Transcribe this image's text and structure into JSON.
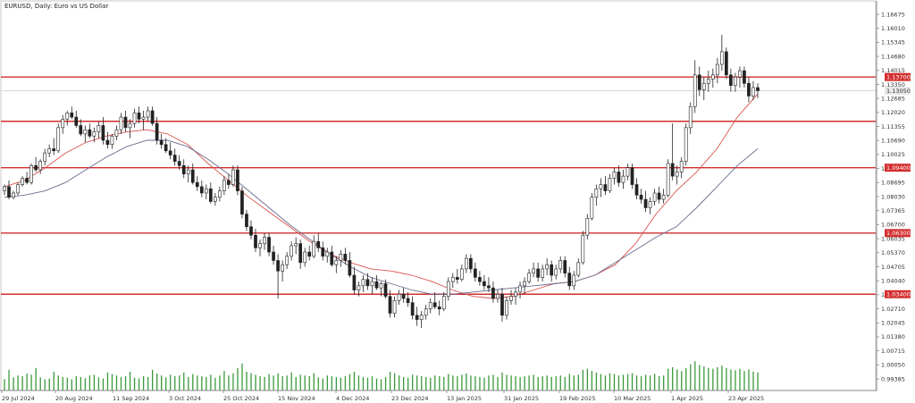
{
  "chart_data": {
    "type": "candlestick",
    "title": "EURUSD, Daily:  Euro vs US Dollar",
    "y_ticks": [
      "1.16675",
      "1.16010",
      "1.15345",
      "1.14680",
      "1.14015",
      "1.13350",
      "1.12685",
      "1.12020",
      "1.11355",
      "1.10690",
      "1.10025",
      "1.09360",
      "1.08695",
      "1.08030",
      "1.07365",
      "1.06700",
      "1.06035",
      "1.05370",
      "1.04705",
      "1.04040",
      "1.03375",
      "1.02710",
      "1.02045",
      "1.01380",
      "1.00715",
      "1.00050",
      "0.99385"
    ],
    "x_ticks": [
      "29 Jul 2024",
      "20 Aug 2024",
      "11 Sep 2024",
      "3 Oct 2024",
      "25 Oct 2024",
      "15 Nov 2024",
      "4 Dec 2024",
      "23 Dec 2024",
      "13 Jan 2025",
      "31 Jan 2025",
      "19 Feb 2025",
      "10 Mar 2025",
      "1 Apr 2025",
      "23 Apr 2025"
    ],
    "ylim": [
      0.99385,
      1.16675
    ],
    "horizontal_levels": [
      {
        "value": 1.137,
        "label": "1.13700"
      },
      {
        "value": 1.116,
        "label": ""
      },
      {
        "value": 1.094,
        "label": "1.09400"
      },
      {
        "value": 1.063,
        "label": "1.06300"
      },
      {
        "value": 1.034,
        "label": "1.03400"
      }
    ],
    "current_price": {
      "value": 1.1305,
      "label": "1.13050"
    },
    "grid": false,
    "series": [
      {
        "kind": "ma-fast",
        "color": "#d9534f",
        "values": [
          1.085,
          1.088,
          1.094,
          1.101,
          1.106,
          1.109,
          1.111,
          1.112,
          1.11,
          1.105,
          1.096,
          1.088,
          1.08,
          1.073,
          1.066,
          1.059,
          1.053,
          1.049,
          1.046,
          1.045,
          1.043,
          1.04,
          1.036,
          1.033,
          1.032,
          1.033,
          1.036,
          1.039,
          1.04,
          1.043,
          1.048,
          1.058,
          1.072,
          1.083,
          1.092,
          1.103,
          1.118,
          1.129
        ]
      },
      {
        "kind": "ma-slow",
        "color": "#6b6b8e",
        "values": [
          1.08,
          1.081,
          1.083,
          1.087,
          1.093,
          1.099,
          1.104,
          1.107,
          1.107,
          1.104,
          1.098,
          1.091,
          1.083,
          1.075,
          1.067,
          1.06,
          1.053,
          1.047,
          1.042,
          1.039,
          1.036,
          1.034,
          1.034,
          1.035,
          1.036,
          1.037,
          1.038,
          1.039,
          1.04,
          1.043,
          1.049,
          1.055,
          1.061,
          1.066,
          1.075,
          1.085,
          1.095,
          1.103
        ]
      }
    ],
    "candles": [
      [
        1.083,
        1.086,
        1.081,
        1.085
      ],
      [
        1.085,
        1.088,
        1.079,
        1.08
      ],
      [
        1.08,
        1.083,
        1.079,
        1.082
      ],
      [
        1.082,
        1.087,
        1.081,
        1.086
      ],
      [
        1.086,
        1.09,
        1.085,
        1.089
      ],
      [
        1.089,
        1.092,
        1.086,
        1.087
      ],
      [
        1.087,
        1.096,
        1.086,
        1.095
      ],
      [
        1.095,
        1.099,
        1.092,
        1.093
      ],
      [
        1.093,
        1.098,
        1.091,
        1.097
      ],
      [
        1.097,
        1.103,
        1.095,
        1.101
      ],
      [
        1.101,
        1.105,
        1.099,
        1.103
      ],
      [
        1.103,
        1.108,
        1.1,
        1.102
      ],
      [
        1.102,
        1.115,
        1.101,
        1.113
      ],
      [
        1.113,
        1.119,
        1.11,
        1.117
      ],
      [
        1.117,
        1.121,
        1.114,
        1.12
      ],
      [
        1.12,
        1.123,
        1.117,
        1.118
      ],
      [
        1.118,
        1.121,
        1.113,
        1.114
      ],
      [
        1.114,
        1.117,
        1.109,
        1.11
      ],
      [
        1.11,
        1.114,
        1.106,
        1.112
      ],
      [
        1.112,
        1.115,
        1.108,
        1.109
      ],
      [
        1.109,
        1.113,
        1.106,
        1.111
      ],
      [
        1.111,
        1.116,
        1.108,
        1.114
      ],
      [
        1.114,
        1.118,
        1.105,
        1.107
      ],
      [
        1.107,
        1.111,
        1.103,
        1.105
      ],
      [
        1.105,
        1.11,
        1.103,
        1.109
      ],
      [
        1.109,
        1.114,
        1.107,
        1.112
      ],
      [
        1.112,
        1.12,
        1.11,
        1.118
      ],
      [
        1.118,
        1.121,
        1.111,
        1.113
      ],
      [
        1.113,
        1.117,
        1.108,
        1.115
      ],
      [
        1.115,
        1.122,
        1.113,
        1.12
      ],
      [
        1.12,
        1.123,
        1.115,
        1.117
      ],
      [
        1.117,
        1.121,
        1.112,
        1.118
      ],
      [
        1.118,
        1.123,
        1.116,
        1.121
      ],
      [
        1.121,
        1.123,
        1.114,
        1.115
      ],
      [
        1.115,
        1.118,
        1.105,
        1.107
      ],
      [
        1.107,
        1.11,
        1.103,
        1.105
      ],
      [
        1.105,
        1.108,
        1.101,
        1.102
      ],
      [
        1.102,
        1.106,
        1.098,
        1.1
      ],
      [
        1.1,
        1.103,
        1.095,
        1.097
      ],
      [
        1.097,
        1.1,
        1.093,
        1.095
      ],
      [
        1.095,
        1.098,
        1.089,
        1.091
      ],
      [
        1.091,
        1.095,
        1.087,
        1.093
      ],
      [
        1.093,
        1.096,
        1.086,
        1.087
      ],
      [
        1.087,
        1.09,
        1.083,
        1.085
      ],
      [
        1.085,
        1.088,
        1.08,
        1.082
      ],
      [
        1.082,
        1.086,
        1.079,
        1.084
      ],
      [
        1.084,
        1.087,
        1.077,
        1.078
      ],
      [
        1.078,
        1.082,
        1.076,
        1.08
      ],
      [
        1.08,
        1.085,
        1.078,
        1.083
      ],
      [
        1.083,
        1.09,
        1.081,
        1.088
      ],
      [
        1.088,
        1.091,
        1.084,
        1.086
      ],
      [
        1.086,
        1.095,
        1.085,
        1.093
      ],
      [
        1.093,
        1.095,
        1.081,
        1.083
      ],
      [
        1.083,
        1.085,
        1.07,
        1.072
      ],
      [
        1.072,
        1.074,
        1.064,
        1.066
      ],
      [
        1.066,
        1.069,
        1.06,
        1.062
      ],
      [
        1.062,
        1.065,
        1.054,
        1.056
      ],
      [
        1.056,
        1.06,
        1.052,
        1.058
      ],
      [
        1.058,
        1.063,
        1.055,
        1.061
      ],
      [
        1.061,
        1.063,
        1.052,
        1.054
      ],
      [
        1.054,
        1.057,
        1.048,
        1.05
      ],
      [
        1.05,
        1.053,
        1.032,
        1.045
      ],
      [
        1.045,
        1.05,
        1.04,
        1.048
      ],
      [
        1.048,
        1.054,
        1.046,
        1.052
      ],
      [
        1.052,
        1.059,
        1.05,
        1.057
      ],
      [
        1.057,
        1.061,
        1.053,
        1.058
      ],
      [
        1.058,
        1.06,
        1.046,
        1.049
      ],
      [
        1.049,
        1.056,
        1.047,
        1.054
      ],
      [
        1.054,
        1.057,
        1.05,
        1.052
      ],
      [
        1.052,
        1.062,
        1.051,
        1.059
      ],
      [
        1.059,
        1.063,
        1.054,
        1.056
      ],
      [
        1.056,
        1.059,
        1.05,
        1.052
      ],
      [
        1.052,
        1.056,
        1.049,
        1.054
      ],
      [
        1.054,
        1.057,
        1.047,
        1.048
      ],
      [
        1.048,
        1.052,
        1.044,
        1.05
      ],
      [
        1.05,
        1.055,
        1.047,
        1.053
      ],
      [
        1.053,
        1.056,
        1.048,
        1.05
      ],
      [
        1.05,
        1.054,
        1.042,
        1.043
      ],
      [
        1.043,
        1.047,
        1.034,
        1.036
      ],
      [
        1.036,
        1.04,
        1.033,
        1.038
      ],
      [
        1.038,
        1.043,
        1.035,
        1.041
      ],
      [
        1.041,
        1.044,
        1.036,
        1.038
      ],
      [
        1.038,
        1.042,
        1.034,
        1.04
      ],
      [
        1.04,
        1.043,
        1.036,
        1.037
      ],
      [
        1.037,
        1.04,
        1.033,
        1.039
      ],
      [
        1.039,
        1.041,
        1.032,
        1.033
      ],
      [
        1.033,
        1.036,
        1.023,
        1.025
      ],
      [
        1.025,
        1.033,
        1.023,
        1.031
      ],
      [
        1.031,
        1.036,
        1.029,
        1.034
      ],
      [
        1.034,
        1.037,
        1.03,
        1.032
      ],
      [
        1.032,
        1.035,
        1.028,
        1.03
      ],
      [
        1.03,
        1.033,
        1.022,
        1.024
      ],
      [
        1.024,
        1.028,
        1.019,
        1.022
      ],
      [
        1.022,
        1.026,
        1.018,
        1.024
      ],
      [
        1.024,
        1.029,
        1.022,
        1.027
      ],
      [
        1.027,
        1.032,
        1.025,
        1.03
      ],
      [
        1.03,
        1.035,
        1.027,
        1.028
      ],
      [
        1.028,
        1.031,
        1.024,
        1.027
      ],
      [
        1.027,
        1.035,
        1.026,
        1.033
      ],
      [
        1.033,
        1.042,
        1.031,
        1.04
      ],
      [
        1.04,
        1.044,
        1.037,
        1.042
      ],
      [
        1.042,
        1.046,
        1.039,
        1.041
      ],
      [
        1.041,
        1.048,
        1.04,
        1.046
      ],
      [
        1.046,
        1.053,
        1.044,
        1.051
      ],
      [
        1.051,
        1.053,
        1.044,
        1.046
      ],
      [
        1.046,
        1.049,
        1.04,
        1.042
      ],
      [
        1.042,
        1.045,
        1.038,
        1.04
      ],
      [
        1.04,
        1.043,
        1.036,
        1.038
      ],
      [
        1.038,
        1.042,
        1.035,
        1.037
      ],
      [
        1.037,
        1.04,
        1.03,
        1.032
      ],
      [
        1.032,
        1.036,
        1.03,
        1.034
      ],
      [
        1.034,
        1.037,
        1.021,
        1.024
      ],
      [
        1.024,
        1.033,
        1.022,
        1.031
      ],
      [
        1.031,
        1.036,
        1.029,
        1.033
      ],
      [
        1.033,
        1.037,
        1.029,
        1.035
      ],
      [
        1.035,
        1.04,
        1.032,
        1.038
      ],
      [
        1.038,
        1.042,
        1.034,
        1.04
      ],
      [
        1.04,
        1.046,
        1.039,
        1.044
      ],
      [
        1.044,
        1.049,
        1.042,
        1.046
      ],
      [
        1.046,
        1.049,
        1.04,
        1.042
      ],
      [
        1.042,
        1.048,
        1.04,
        1.046
      ],
      [
        1.046,
        1.051,
        1.043,
        1.048
      ],
      [
        1.048,
        1.05,
        1.04,
        1.043
      ],
      [
        1.043,
        1.048,
        1.041,
        1.046
      ],
      [
        1.046,
        1.052,
        1.044,
        1.05
      ],
      [
        1.05,
        1.052,
        1.042,
        1.044
      ],
      [
        1.044,
        1.047,
        1.036,
        1.038
      ],
      [
        1.038,
        1.045,
        1.036,
        1.043
      ],
      [
        1.043,
        1.051,
        1.042,
        1.049
      ],
      [
        1.049,
        1.064,
        1.048,
        1.062
      ],
      [
        1.062,
        1.072,
        1.06,
        1.07
      ],
      [
        1.07,
        1.082,
        1.069,
        1.08
      ],
      [
        1.08,
        1.086,
        1.076,
        1.084
      ],
      [
        1.084,
        1.089,
        1.08,
        1.086
      ],
      [
        1.086,
        1.09,
        1.081,
        1.083
      ],
      [
        1.083,
        1.091,
        1.082,
        1.089
      ],
      [
        1.089,
        1.094,
        1.086,
        1.092
      ],
      [
        1.092,
        1.095,
        1.085,
        1.087
      ],
      [
        1.087,
        1.093,
        1.084,
        1.09
      ],
      [
        1.09,
        1.096,
        1.088,
        1.094
      ],
      [
        1.094,
        1.096,
        1.084,
        1.086
      ],
      [
        1.086,
        1.089,
        1.079,
        1.081
      ],
      [
        1.081,
        1.084,
        1.077,
        1.079
      ],
      [
        1.079,
        1.083,
        1.073,
        1.075
      ],
      [
        1.075,
        1.08,
        1.072,
        1.078
      ],
      [
        1.078,
        1.084,
        1.076,
        1.082
      ],
      [
        1.082,
        1.085,
        1.077,
        1.079
      ],
      [
        1.079,
        1.084,
        1.077,
        1.081
      ],
      [
        1.081,
        1.098,
        1.08,
        1.096
      ],
      [
        1.096,
        1.115,
        1.088,
        1.09
      ],
      [
        1.09,
        1.095,
        1.086,
        1.092
      ],
      [
        1.092,
        1.099,
        1.089,
        1.097
      ],
      [
        1.097,
        1.115,
        1.095,
        1.113
      ],
      [
        1.113,
        1.125,
        1.11,
        1.123
      ],
      [
        1.123,
        1.145,
        1.12,
        1.138
      ],
      [
        1.138,
        1.142,
        1.128,
        1.131
      ],
      [
        1.131,
        1.137,
        1.126,
        1.134
      ],
      [
        1.134,
        1.14,
        1.13,
        1.136
      ],
      [
        1.136,
        1.141,
        1.132,
        1.138
      ],
      [
        1.138,
        1.146,
        1.134,
        1.143
      ],
      [
        1.143,
        1.157,
        1.14,
        1.149
      ],
      [
        1.149,
        1.151,
        1.136,
        1.138
      ],
      [
        1.138,
        1.141,
        1.13,
        1.133
      ],
      [
        1.133,
        1.139,
        1.13,
        1.137
      ],
      [
        1.137,
        1.142,
        1.132,
        1.14
      ],
      [
        1.14,
        1.142,
        1.132,
        1.134
      ],
      [
        1.134,
        1.137,
        1.125,
        1.128
      ],
      [
        1.128,
        1.135,
        1.126,
        1.132
      ],
      [
        1.132,
        1.134,
        1.127,
        1.1305
      ]
    ],
    "volume": [
      0.3,
      0.55,
      0.35,
      0.4,
      0.38,
      0.45,
      0.42,
      0.6,
      0.35,
      0.3,
      0.32,
      0.5,
      0.4,
      0.36,
      0.34,
      0.3,
      0.38,
      0.36,
      0.33,
      0.4,
      0.42,
      0.35,
      0.32,
      0.48,
      0.44,
      0.4,
      0.36,
      0.38,
      0.5,
      0.34,
      0.32,
      0.38,
      0.36,
      0.55,
      0.45,
      0.4,
      0.35,
      0.42,
      0.38,
      0.4,
      0.48,
      0.36,
      0.44,
      0.4,
      0.38,
      0.36,
      0.42,
      0.34,
      0.4,
      0.52,
      0.4,
      0.46,
      0.6,
      0.72,
      0.5,
      0.46,
      0.42,
      0.38,
      0.36,
      0.44,
      0.4,
      0.46,
      0.38,
      0.4,
      0.48,
      0.36,
      0.42,
      0.4,
      0.38,
      0.46,
      0.35,
      0.32,
      0.4,
      0.38,
      0.36,
      0.34,
      0.38,
      0.44,
      0.5,
      0.4,
      0.36,
      0.34,
      0.38,
      0.32,
      0.3,
      0.36,
      0.5,
      0.46,
      0.4,
      0.36,
      0.34,
      0.42,
      0.4,
      0.38,
      0.36,
      0.34,
      0.4,
      0.38,
      0.36,
      0.44,
      0.4,
      0.38,
      0.42,
      0.46,
      0.4,
      0.38,
      0.36,
      0.34,
      0.4,
      0.42,
      0.36,
      0.48,
      0.42,
      0.4,
      0.38,
      0.36,
      0.38,
      0.4,
      0.42,
      0.36,
      0.38,
      0.4,
      0.36,
      0.38,
      0.4,
      0.36,
      0.44,
      0.4,
      0.42,
      0.55,
      0.58,
      0.52,
      0.48,
      0.44,
      0.4,
      0.46,
      0.44,
      0.4,
      0.42,
      0.44,
      0.46,
      0.4,
      0.38,
      0.42,
      0.4,
      0.44,
      0.38,
      0.4,
      0.58,
      0.62,
      0.56,
      0.52,
      0.6,
      0.7,
      0.78,
      0.68,
      0.64,
      0.6,
      0.58,
      0.62,
      0.66,
      0.6,
      0.56,
      0.54,
      0.58,
      0.52,
      0.56,
      0.5,
      0.48
    ]
  }
}
